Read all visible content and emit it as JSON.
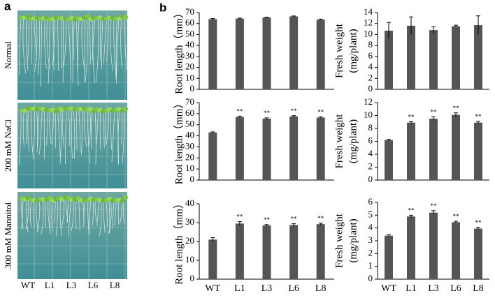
{
  "panel_a": {
    "label": "a",
    "rows": [
      "Normal",
      "200 mM NaCl",
      "300 mM Mannitol"
    ],
    "columns": [
      "WT",
      "L1",
      "L3",
      "L6",
      "L8"
    ]
  },
  "panel_b": {
    "label": "b"
  },
  "chart_data": [
    {
      "type": "bar",
      "y_label": [
        "Root length（mm）"
      ],
      "categories": [
        null,
        null,
        null,
        null,
        null
      ],
      "values": [
        64,
        64.5,
        65.5,
        66.5,
        63.5
      ],
      "errors": [
        0.5,
        0.5,
        0.4,
        0.4,
        0.5
      ],
      "significance": [
        null,
        null,
        null,
        null,
        null
      ],
      "color": "#555555",
      "ylim": [
        0,
        70
      ],
      "yticks": [
        0,
        10,
        20,
        30,
        40,
        50,
        60,
        70
      ]
    },
    {
      "type": "bar",
      "y_label": [
        "Fresh weight",
        "(mg/plant)"
      ],
      "categories": [
        null,
        null,
        null,
        null,
        null
      ],
      "values": [
        10.7,
        11.6,
        10.8,
        11.5,
        11.7
      ],
      "errors": [
        1.5,
        1.6,
        0.6,
        0.2,
        1.7
      ],
      "significance": [
        null,
        null,
        null,
        null,
        null
      ],
      "color": "#555555",
      "ylim": [
        0,
        14
      ],
      "yticks": [
        0,
        2,
        4,
        6,
        8,
        10,
        12,
        14
      ]
    },
    {
      "type": "bar",
      "y_label": [
        "Root length（mm）"
      ],
      "categories": [
        null,
        null,
        null,
        null,
        null
      ],
      "values": [
        43,
        57,
        55.5,
        57.5,
        56.5
      ],
      "errors": [
        0.5,
        0.8,
        0.7,
        0.7,
        0.6
      ],
      "significance": [
        null,
        "**",
        "**",
        "**",
        "**"
      ],
      "color": "#555555",
      "ylim": [
        0,
        70
      ],
      "yticks": [
        0,
        10,
        20,
        30,
        40,
        50,
        60,
        70
      ]
    },
    {
      "type": "bar",
      "y_label": [
        "Fresh weight",
        "(mg/plant)"
      ],
      "categories": [
        null,
        null,
        null,
        null,
        null
      ],
      "values": [
        6.2,
        8.9,
        9.5,
        10.1,
        8.9
      ],
      "errors": [
        0.1,
        0.15,
        0.3,
        0.3,
        0.2
      ],
      "significance": [
        null,
        "**",
        "**",
        "**",
        "**"
      ],
      "color": "#555555",
      "ylim": [
        0,
        12
      ],
      "yticks": [
        0,
        2,
        4,
        6,
        8,
        10,
        12
      ]
    },
    {
      "type": "bar",
      "y_label": [
        "Root length（mm）"
      ],
      "categories": [
        "WT",
        "L1",
        "L3",
        "L6",
        "L8"
      ],
      "values": [
        21,
        29.5,
        28.5,
        28.7,
        29.2
      ],
      "errors": [
        1,
        1,
        0.5,
        0.7,
        0.5
      ],
      "significance": [
        null,
        "**",
        "**",
        "**",
        "**"
      ],
      "color": "#555555",
      "ylim": [
        0,
        40
      ],
      "yticks": [
        0,
        10,
        20,
        30,
        40
      ]
    },
    {
      "type": "bar",
      "y_label": [
        "Fresh weight",
        "(mg/plant)"
      ],
      "categories": [
        "WT",
        "L1",
        "L3",
        "L6",
        "L8"
      ],
      "values": [
        3.4,
        4.9,
        5.2,
        4.45,
        3.95
      ],
      "errors": [
        0.08,
        0.1,
        0.15,
        0.08,
        0.1
      ],
      "significance": [
        null,
        "**",
        "**",
        "**",
        "**"
      ],
      "color": "#555555",
      "ylim": [
        0,
        6
      ],
      "yticks": [
        0,
        1,
        2,
        3,
        4,
        5,
        6
      ]
    }
  ]
}
